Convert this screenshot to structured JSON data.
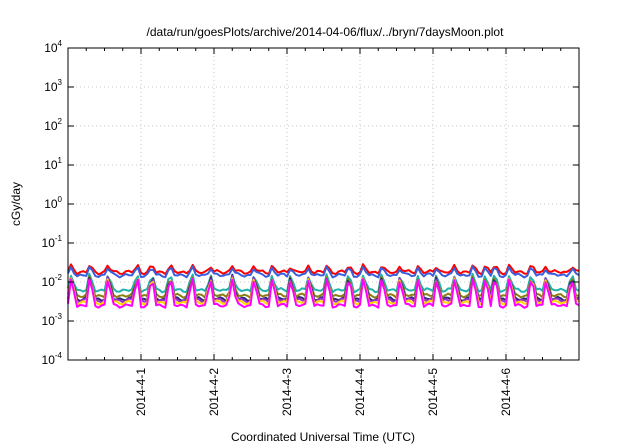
{
  "chart_data": {
    "type": "line",
    "title": "/data/run/goesPlots/archive/2014-04-06/flux/../bryn/7daysMoon.plot",
    "xlabel": "Coordinated Universal Time (UTC)",
    "ylabel": "cGy/day",
    "yscale": "log",
    "ylim": [
      0.0001,
      10000
    ],
    "xlim_days": [
      0,
      7
    ],
    "grid": true,
    "x_ticks": [
      {
        "label": "2014-4-1",
        "day": 1
      },
      {
        "label": "2014-4-2",
        "day": 2
      },
      {
        "label": "2014-4-3",
        "day": 3
      },
      {
        "label": "2014-4-4",
        "day": 4
      },
      {
        "label": "2014-4-5",
        "day": 5
      },
      {
        "label": "2014-4-6",
        "day": 6
      }
    ],
    "y_ticks": [
      {
        "base": "10",
        "exp": "-4",
        "value": 0.0001
      },
      {
        "base": "10",
        "exp": "-3",
        "value": 0.001
      },
      {
        "base": "10",
        "exp": "-2",
        "value": 0.01
      },
      {
        "base": "10",
        "exp": "-1",
        "value": 0.1
      },
      {
        "base": "10",
        "exp": "0",
        "value": 1
      },
      {
        "base": "10",
        "exp": "1",
        "value": 10
      },
      {
        "base": "10",
        "exp": "2",
        "value": 100
      },
      {
        "base": "10",
        "exp": "3",
        "value": 1000
      },
      {
        "base": "10",
        "exp": "4",
        "value": 10000
      }
    ],
    "series": [
      {
        "color": "#ff0000",
        "baseline": 0.018,
        "spike_factor": 1.5
      },
      {
        "color": "#3a5fdd",
        "baseline": 0.015,
        "spike_factor": 1.6
      },
      {
        "color": "#20b2aa",
        "baseline": 0.0062,
        "spike_factor": 2.6
      },
      {
        "color": "#8b7d10",
        "baseline": 0.0045,
        "spike_factor": 3.2
      },
      {
        "color": "#2a2a78",
        "baseline": 0.0037,
        "spike_factor": 3.8
      },
      {
        "color": "#9932cc",
        "baseline": 0.0034,
        "spike_factor": 4.0
      },
      {
        "color": "#ffd700",
        "baseline": 0.003,
        "spike_factor": 4.3
      },
      {
        "color": "#ff00ff",
        "baseline": 0.0025,
        "spike_factor": 5.0
      }
    ],
    "spike_days": [
      0.05,
      0.3,
      0.55,
      0.95,
      1.15,
      1.4,
      1.7,
      1.95,
      2.25,
      2.55,
      2.8,
      3.05,
      3.3,
      3.55,
      3.85,
      4.05,
      4.3,
      4.55,
      4.8,
      5.05,
      5.3,
      5.55,
      5.72,
      5.85,
      6.05,
      6.35,
      6.55,
      6.9
    ]
  }
}
